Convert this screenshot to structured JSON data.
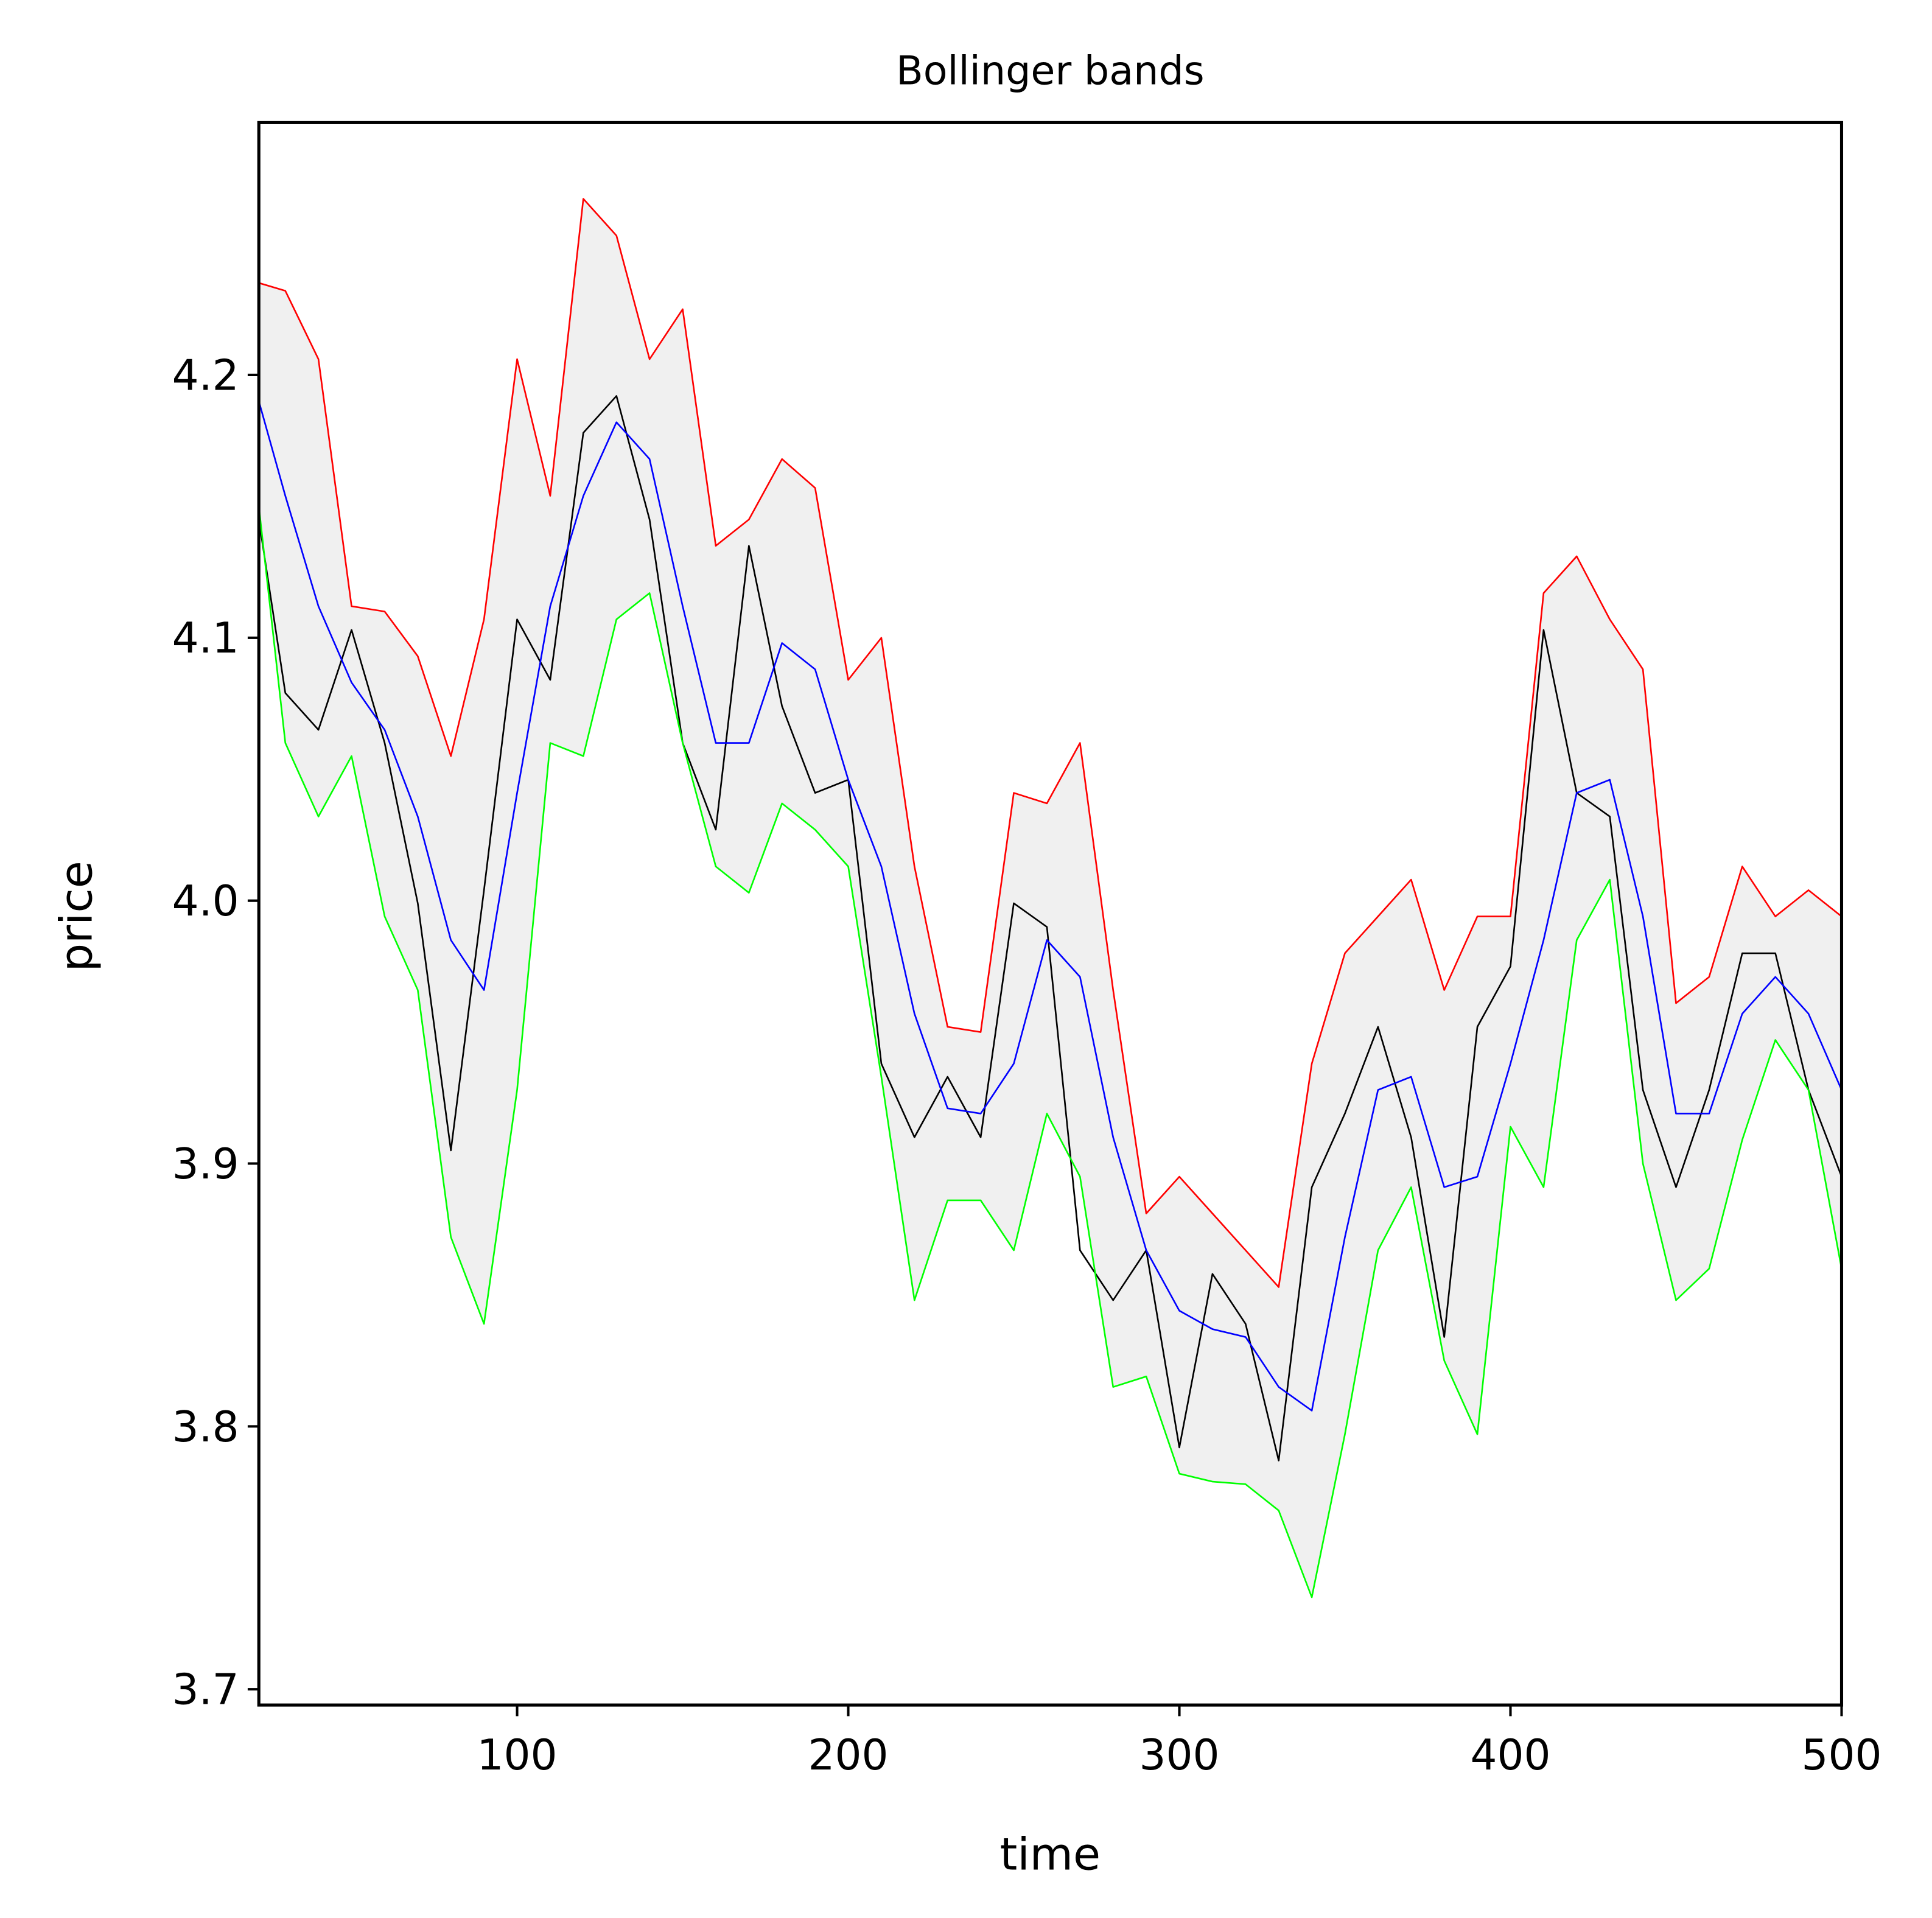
{
  "chart_data": {
    "type": "line",
    "title": "Bollinger bands",
    "x_label": "time",
    "y_label": "price",
    "x": [
      22,
      30,
      40,
      50,
      60,
      70,
      80,
      90,
      100,
      110,
      120,
      130,
      140,
      150,
      160,
      170,
      180,
      190,
      200,
      210,
      220,
      230,
      240,
      250,
      260,
      270,
      280,
      290,
      300,
      310,
      320,
      330,
      340,
      350,
      360,
      370,
      380,
      390,
      400,
      410,
      420,
      430,
      440,
      450,
      460,
      470,
      480,
      490,
      500
    ],
    "series": [
      {
        "color": "#000000",
        "values": [
          4.145,
          4.079,
          4.065,
          4.103,
          4.06,
          3.999,
          3.905,
          4.004,
          4.107,
          4.084,
          4.178,
          4.192,
          4.145,
          4.06,
          4.027,
          4.135,
          4.074,
          4.041,
          4.046,
          3.938,
          3.91,
          3.933,
          3.91,
          3.999,
          3.99,
          3.867,
          3.848,
          3.867,
          3.792,
          3.858,
          3.839,
          3.787,
          3.891,
          3.919,
          3.952,
          3.91,
          3.834,
          3.952,
          3.975,
          4.103,
          4.041,
          4.032,
          3.928,
          3.891,
          3.928,
          3.98,
          3.98,
          3.928,
          3.895
        ]
      },
      {
        "color": "#0000ff",
        "values": [
          4.19,
          4.154,
          4.112,
          4.083,
          4.065,
          4.032,
          3.985,
          3.966,
          4.041,
          4.112,
          4.154,
          4.182,
          4.168,
          4.112,
          4.06,
          4.06,
          4.098,
          4.088,
          4.046,
          4.013,
          3.957,
          3.921,
          3.919,
          3.938,
          3.985,
          3.971,
          3.91,
          3.867,
          3.844,
          3.837,
          3.834,
          3.815,
          3.806,
          3.872,
          3.928,
          3.933,
          3.891,
          3.895,
          3.938,
          3.985,
          4.041,
          4.046,
          3.994,
          3.919,
          3.919,
          3.957,
          3.971,
          3.957,
          3.928
        ]
      },
      {
        "color": "#ff0000",
        "values": [
          4.235,
          4.232,
          4.206,
          4.112,
          4.11,
          4.093,
          4.055,
          4.107,
          4.206,
          4.154,
          4.267,
          4.253,
          4.206,
          4.225,
          4.135,
          4.145,
          4.168,
          4.157,
          4.084,
          4.1,
          4.013,
          3.952,
          3.95,
          4.041,
          4.037,
          4.06,
          3.966,
          3.881,
          3.895,
          3.881,
          3.867,
          3.853,
          3.938,
          3.98,
          3.994,
          4.008,
          3.966,
          3.994,
          3.994,
          4.117,
          4.131,
          4.107,
          4.088,
          3.961,
          3.971,
          4.013,
          3.994,
          4.004,
          3.994
        ]
      },
      {
        "color": "#00ff00",
        "values": [
          4.15,
          4.06,
          4.032,
          4.055,
          3.994,
          3.966,
          3.872,
          3.839,
          3.928,
          4.06,
          4.055,
          4.107,
          4.117,
          4.06,
          4.013,
          4.003,
          4.037,
          4.027,
          4.013,
          3.933,
          3.848,
          3.886,
          3.886,
          3.867,
          3.919,
          3.895,
          3.815,
          3.819,
          3.782,
          3.779,
          3.778,
          3.768,
          3.735,
          3.797,
          3.867,
          3.891,
          3.825,
          3.797,
          3.914,
          3.891,
          3.985,
          4.008,
          3.9,
          3.848,
          3.86,
          3.909,
          3.947,
          3.928,
          3.86
        ]
      }
    ],
    "band_fill": "#f0f0f0",
    "xlim": [
      22,
      500
    ],
    "xticks": [
      100,
      200,
      300,
      400,
      500
    ],
    "ylim": [
      3.694,
      4.296
    ],
    "yticks": [
      3.7,
      3.8,
      3.9,
      {
        "value": 4,
        "label": "4.0"
      },
      4.1,
      4.2
    ]
  }
}
